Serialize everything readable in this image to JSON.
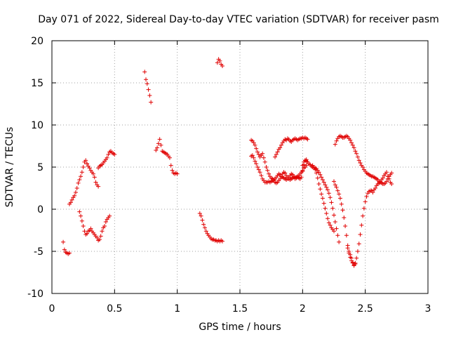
{
  "chart_data": {
    "type": "scatter",
    "title": "Day 071 of 2022, Sidereal Day-to-day VTEC variation (SDTVAR) for receiver pasm",
    "xlabel": "GPS time / hours",
    "ylabel": "SDTVAR / TECUs",
    "xlim": [
      0,
      3
    ],
    "ylim": [
      -10,
      20
    ],
    "xticks": [
      "0",
      "0.5",
      "1",
      "1.5",
      "2",
      "2.5",
      "3"
    ],
    "yticks": [
      "-10",
      "-5",
      "0",
      "5",
      "10",
      "15",
      "20"
    ],
    "grid": true,
    "marker": "+",
    "color": "#e00000",
    "series": [
      {
        "name": "s1",
        "x": [
          0.09,
          0.1,
          0.11,
          0.12,
          0.13,
          0.14
        ],
        "y": [
          -3.9,
          -4.8,
          -5.1,
          -5.2,
          -5.3,
          -5.2
        ]
      },
      {
        "name": "s2",
        "x": [
          0.14,
          0.15,
          0.16,
          0.17,
          0.18,
          0.19,
          0.2,
          0.21,
          0.22,
          0.23,
          0.24,
          0.25,
          0.26,
          0.27,
          0.28
        ],
        "y": [
          0.6,
          0.8,
          1.1,
          1.4,
          1.6,
          2.0,
          2.5,
          3.1,
          3.5,
          3.9,
          4.4,
          5.0,
          5.6,
          5.8,
          5.4
        ]
      },
      {
        "name": "s3",
        "x": [
          0.28,
          0.29,
          0.3,
          0.31,
          0.32,
          0.33,
          0.34,
          0.35,
          0.36,
          0.37
        ],
        "y": [
          5.4,
          5.1,
          4.9,
          4.6,
          4.4,
          4.2,
          3.8,
          3.2,
          2.9,
          2.7
        ]
      },
      {
        "name": "s4",
        "x": [
          0.22,
          0.23,
          0.24,
          0.25,
          0.26,
          0.27,
          0.28,
          0.29,
          0.3,
          0.31,
          0.32,
          0.33,
          0.34,
          0.35,
          0.36,
          0.37,
          0.38,
          0.39,
          0.4,
          0.41,
          0.42,
          0.43,
          0.44,
          0.45,
          0.46
        ],
        "y": [
          -0.3,
          -0.8,
          -1.4,
          -2.0,
          -2.6,
          -3.0,
          -2.9,
          -2.6,
          -2.5,
          -2.3,
          -2.6,
          -2.8,
          -3.0,
          -3.2,
          -3.4,
          -3.7,
          -3.6,
          -3.2,
          -2.6,
          -2.2,
          -2.0,
          -1.5,
          -1.2,
          -1.0,
          -0.8
        ]
      },
      {
        "name": "s5",
        "x": [
          0.37,
          0.38,
          0.39,
          0.4,
          0.41,
          0.42,
          0.43,
          0.44,
          0.45,
          0.46,
          0.47,
          0.48,
          0.49,
          0.5
        ],
        "y": [
          4.9,
          5.1,
          5.2,
          5.3,
          5.5,
          5.7,
          5.9,
          6.1,
          6.5,
          6.8,
          6.9,
          6.7,
          6.6,
          6.5
        ]
      },
      {
        "name": "s6",
        "x": [
          0.74,
          0.75,
          0.76,
          0.77,
          0.78,
          0.79
        ],
        "y": [
          16.3,
          15.4,
          14.9,
          14.2,
          13.5,
          12.7
        ]
      },
      {
        "name": "s7",
        "x": [
          0.83,
          0.84,
          0.85,
          0.86,
          0.87,
          0.88,
          0.89,
          0.9,
          0.91,
          0.92,
          0.93,
          0.94,
          0.95,
          0.96,
          0.97,
          0.98,
          0.99,
          1.0
        ],
        "y": [
          7.0,
          7.3,
          7.8,
          8.3,
          7.6,
          6.9,
          6.8,
          6.7,
          6.6,
          6.5,
          6.3,
          6.1,
          5.2,
          4.6,
          4.3,
          4.2,
          4.3,
          4.2
        ]
      },
      {
        "name": "s8",
        "x": [
          1.18,
          1.19,
          1.2,
          1.21,
          1.22,
          1.23,
          1.24,
          1.25,
          1.26,
          1.27,
          1.28,
          1.29,
          1.3,
          1.31,
          1.32,
          1.33,
          1.34,
          1.35,
          1.36
        ],
        "y": [
          -0.5,
          -0.8,
          -1.3,
          -1.8,
          -2.2,
          -2.6,
          -2.9,
          -3.1,
          -3.3,
          -3.5,
          -3.6,
          -3.6,
          -3.7,
          -3.7,
          -3.8,
          -3.7,
          -3.8,
          -3.7,
          -3.8
        ]
      },
      {
        "name": "s9",
        "x": [
          1.32,
          1.33,
          1.34,
          1.35,
          1.36
        ],
        "y": [
          17.4,
          17.8,
          17.6,
          17.2,
          17.0
        ]
      },
      {
        "name": "s10",
        "x": [
          1.59,
          1.6,
          1.61,
          1.62,
          1.63,
          1.64,
          1.65,
          1.66,
          1.67,
          1.68,
          1.69,
          1.7,
          1.71,
          1.72,
          1.73,
          1.74,
          1.75,
          1.76,
          1.77,
          1.78,
          1.79,
          1.8,
          1.81,
          1.82,
          1.83,
          1.84,
          1.85,
          1.86,
          1.87,
          1.88,
          1.89,
          1.9,
          1.91,
          1.92,
          1.93,
          1.94,
          1.95,
          1.96,
          1.97,
          1.98,
          1.99,
          2.0,
          2.01,
          2.02,
          2.03
        ],
        "y": [
          8.2,
          8.1,
          7.9,
          7.6,
          7.2,
          6.8,
          6.5,
          6.2,
          6.4,
          6.6,
          6.1,
          5.6,
          5.0,
          4.6,
          4.2,
          3.9,
          3.7,
          3.6,
          3.4,
          3.2,
          3.1,
          3.2,
          3.4,
          3.6,
          3.9,
          4.2,
          4.4,
          4.3,
          4.0,
          3.8,
          3.6,
          3.5,
          3.6,
          3.7,
          3.8,
          3.6,
          3.7,
          3.8,
          3.7,
          3.6,
          3.8,
          4.5,
          5.3,
          5.8,
          5.9
        ]
      },
      {
        "name": "s11",
        "x": [
          1.59,
          1.6,
          1.61,
          1.62,
          1.63,
          1.64,
          1.65,
          1.66,
          1.67,
          1.68,
          1.69,
          1.7,
          1.71,
          1.72,
          1.73,
          1.74,
          1.75,
          1.76,
          1.77,
          1.78,
          1.79,
          1.8,
          1.81,
          1.82,
          1.83,
          1.84,
          1.85,
          1.86,
          1.87,
          1.88,
          1.89,
          1.9,
          1.91,
          1.92,
          1.93,
          1.94,
          1.95,
          1.96,
          1.97,
          1.98,
          1.99,
          2.0,
          2.01,
          2.02,
          2.03
        ],
        "y": [
          6.3,
          6.4,
          6.1,
          5.7,
          5.4,
          5.0,
          4.7,
          4.4,
          4.0,
          3.6,
          3.4,
          3.2,
          3.2,
          3.2,
          3.3,
          3.2,
          3.3,
          3.4,
          3.5,
          3.6,
          3.8,
          4.0,
          4.2,
          4.1,
          3.9,
          3.8,
          3.7,
          3.6,
          3.5,
          3.6,
          3.8,
          4.0,
          4.2,
          4.1,
          3.9,
          3.8,
          3.8,
          3.9,
          4.0,
          4.2,
          4.4,
          4.6,
          4.9,
          5.0,
          5.2
        ]
      },
      {
        "name": "s12",
        "x": [
          1.78,
          1.79,
          1.8,
          1.81,
          1.82,
          1.83,
          1.84,
          1.85,
          1.86,
          1.87,
          1.88,
          1.89,
          1.9,
          1.91,
          1.92,
          1.93,
          1.94,
          1.95,
          1.96,
          1.97,
          1.98,
          1.99,
          2.0,
          2.01,
          2.02,
          2.03,
          2.04
        ],
        "y": [
          6.2,
          6.5,
          6.8,
          7.1,
          7.3,
          7.6,
          7.9,
          8.1,
          8.3,
          8.2,
          8.4,
          8.3,
          8.1,
          8.0,
          8.2,
          8.3,
          8.4,
          8.3,
          8.2,
          8.3,
          8.4,
          8.4,
          8.5,
          8.4,
          8.5,
          8.4,
          8.3
        ]
      },
      {
        "name": "s13",
        "x": [
          2.0,
          2.01,
          2.02,
          2.03,
          2.04,
          2.05,
          2.06,
          2.07,
          2.08,
          2.09,
          2.1,
          2.11,
          2.12,
          2.13,
          2.14,
          2.15,
          2.16,
          2.17,
          2.18,
          2.19,
          2.2,
          2.21,
          2.22,
          2.23,
          2.24,
          2.25,
          2.26,
          2.27,
          2.28,
          2.29
        ],
        "y": [
          5.2,
          5.6,
          5.8,
          5.7,
          5.6,
          5.4,
          5.3,
          5.1,
          5.0,
          4.9,
          4.9,
          4.8,
          4.6,
          4.4,
          4.1,
          3.8,
          3.5,
          3.2,
          2.9,
          2.6,
          2.3,
          1.9,
          1.4,
          0.8,
          0.1,
          -0.7,
          -1.5,
          -2.3,
          -3.1,
          -3.9
        ]
      },
      {
        "name": "s14",
        "x": [
          2.08,
          2.09,
          2.1,
          2.11,
          2.12,
          2.13,
          2.14,
          2.15,
          2.16,
          2.17,
          2.18,
          2.19,
          2.2,
          2.21,
          2.22,
          2.23,
          2.24,
          2.25
        ],
        "y": [
          5.2,
          5.0,
          4.7,
          4.3,
          3.7,
          3.0,
          2.4,
          1.8,
          1.3,
          0.7,
          0.1,
          -0.5,
          -1.1,
          -1.6,
          -1.9,
          -2.2,
          -2.4,
          -2.6
        ]
      },
      {
        "name": "s15",
        "x": [
          2.25,
          2.26,
          2.27,
          2.28,
          2.29,
          2.3,
          2.31,
          2.32,
          2.33,
          2.34,
          2.35,
          2.36,
          2.37,
          2.38,
          2.39,
          2.4,
          2.41,
          2.42,
          2.43,
          2.44,
          2.45,
          2.46,
          2.47,
          2.48,
          2.49,
          2.5,
          2.51,
          2.52,
          2.53,
          2.54,
          2.55,
          2.56,
          2.57,
          2.58,
          2.59,
          2.6,
          2.61,
          2.62,
          2.63,
          2.64,
          2.65,
          2.66,
          2.67,
          2.68,
          2.69,
          2.7,
          2.71
        ],
        "y": [
          3.3,
          2.9,
          2.6,
          2.2,
          1.8,
          1.3,
          0.6,
          -0.1,
          -1.0,
          -2.0,
          -3.1,
          -4.3,
          -5.2,
          -5.7,
          -6.1,
          -6.4,
          -6.7,
          -6.4,
          -5.8,
          -5.0,
          -4.1,
          -3.0,
          -1.9,
          -0.8,
          0.1,
          0.9,
          1.5,
          1.9,
          2.1,
          2.2,
          2.2,
          2.0,
          2.3,
          2.5,
          2.8,
          3.0,
          3.1,
          3.3,
          3.5,
          3.7,
          4.0,
          4.2,
          4.4,
          3.9,
          3.6,
          3.2,
          3.0
        ]
      },
      {
        "name": "s16",
        "x": [
          2.26,
          2.27,
          2.28,
          2.29,
          2.3,
          2.31,
          2.32,
          2.33,
          2.34,
          2.35,
          2.36,
          2.37,
          2.38,
          2.39,
          2.4,
          2.41,
          2.42,
          2.43,
          2.44,
          2.45,
          2.46,
          2.47,
          2.48,
          2.49,
          2.5,
          2.51,
          2.52,
          2.53,
          2.54,
          2.55,
          2.56,
          2.57,
          2.58,
          2.59,
          2.6,
          2.61,
          2.62,
          2.63,
          2.64,
          2.65,
          2.66,
          2.67,
          2.68,
          2.69,
          2.7,
          2.71
        ],
        "y": [
          7.7,
          8.1,
          8.4,
          8.6,
          8.7,
          8.6,
          8.5,
          8.5,
          8.6,
          8.7,
          8.6,
          8.4,
          8.2,
          7.9,
          7.6,
          7.3,
          6.9,
          6.6,
          6.2,
          5.8,
          5.5,
          5.2,
          5.0,
          4.7,
          4.5,
          4.3,
          4.2,
          4.1,
          4.0,
          3.9,
          3.9,
          3.8,
          3.7,
          3.6,
          3.5,
          3.3,
          3.2,
          3.1,
          3.0,
          3.0,
          3.1,
          3.3,
          3.6,
          3.9,
          4.1,
          4.3
        ]
      },
      {
        "name": "s17",
        "x": [
          2.36,
          2.37,
          2.38,
          2.39,
          2.4,
          2.41,
          2.42
        ],
        "y": [
          -4.6,
          -5.0,
          -5.4,
          -5.8,
          -6.3,
          -6.6,
          -6.5
        ]
      }
    ]
  }
}
